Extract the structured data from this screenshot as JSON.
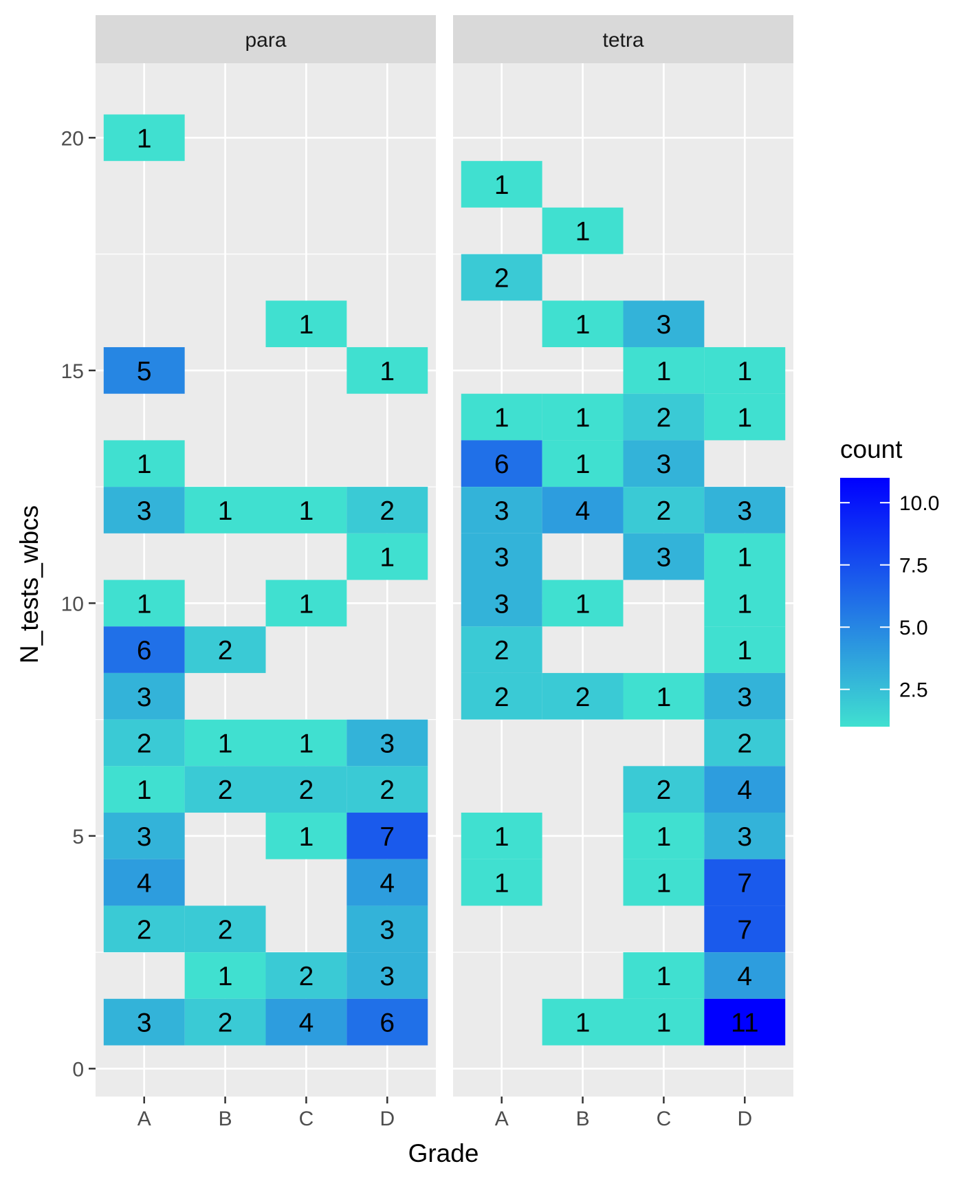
{
  "chart_data": {
    "type": "heatmap",
    "xlabel": "Grade",
    "ylabel": "N_tests_wbcs",
    "categories": [
      "A",
      "B",
      "C",
      "D"
    ],
    "ylim": [
      -0.6,
      21.6
    ],
    "yticks": [
      0,
      5,
      10,
      15,
      20
    ],
    "legend": {
      "title": "count",
      "position": "right",
      "ticks": [
        "2.5",
        "5.0",
        "7.5",
        "10.0"
      ],
      "tick_values": [
        2.5,
        5.0,
        7.5,
        10.0
      ],
      "range": [
        1,
        11
      ],
      "color_low": "#40E0D0",
      "color_high": "#0000FF"
    },
    "panels": [
      {
        "name": "para",
        "cells": [
          {
            "x": "A",
            "y": 20,
            "count": 1
          },
          {
            "x": "C",
            "y": 16,
            "count": 1
          },
          {
            "x": "A",
            "y": 15,
            "count": 5
          },
          {
            "x": "D",
            "y": 15,
            "count": 1
          },
          {
            "x": "A",
            "y": 13,
            "count": 1
          },
          {
            "x": "A",
            "y": 12,
            "count": 3
          },
          {
            "x": "B",
            "y": 12,
            "count": 1
          },
          {
            "x": "C",
            "y": 12,
            "count": 1
          },
          {
            "x": "D",
            "y": 12,
            "count": 2
          },
          {
            "x": "D",
            "y": 11,
            "count": 1
          },
          {
            "x": "A",
            "y": 10,
            "count": 1
          },
          {
            "x": "C",
            "y": 10,
            "count": 1
          },
          {
            "x": "A",
            "y": 9,
            "count": 6
          },
          {
            "x": "B",
            "y": 9,
            "count": 2
          },
          {
            "x": "A",
            "y": 8,
            "count": 3
          },
          {
            "x": "A",
            "y": 7,
            "count": 2
          },
          {
            "x": "B",
            "y": 7,
            "count": 1
          },
          {
            "x": "C",
            "y": 7,
            "count": 1
          },
          {
            "x": "D",
            "y": 7,
            "count": 3
          },
          {
            "x": "A",
            "y": 6,
            "count": 1
          },
          {
            "x": "B",
            "y": 6,
            "count": 2
          },
          {
            "x": "C",
            "y": 6,
            "count": 2
          },
          {
            "x": "D",
            "y": 6,
            "count": 2
          },
          {
            "x": "A",
            "y": 5,
            "count": 3
          },
          {
            "x": "C",
            "y": 5,
            "count": 1
          },
          {
            "x": "D",
            "y": 5,
            "count": 7
          },
          {
            "x": "A",
            "y": 4,
            "count": 4
          },
          {
            "x": "D",
            "y": 4,
            "count": 4
          },
          {
            "x": "A",
            "y": 3,
            "count": 2
          },
          {
            "x": "B",
            "y": 3,
            "count": 2
          },
          {
            "x": "D",
            "y": 3,
            "count": 3
          },
          {
            "x": "B",
            "y": 2,
            "count": 1
          },
          {
            "x": "C",
            "y": 2,
            "count": 2
          },
          {
            "x": "D",
            "y": 2,
            "count": 3
          },
          {
            "x": "A",
            "y": 1,
            "count": 3
          },
          {
            "x": "B",
            "y": 1,
            "count": 2
          },
          {
            "x": "C",
            "y": 1,
            "count": 4
          },
          {
            "x": "D",
            "y": 1,
            "count": 6
          }
        ]
      },
      {
        "name": "tetra",
        "cells": [
          {
            "x": "A",
            "y": 19,
            "count": 1
          },
          {
            "x": "B",
            "y": 18,
            "count": 1
          },
          {
            "x": "A",
            "y": 17,
            "count": 2
          },
          {
            "x": "B",
            "y": 16,
            "count": 1
          },
          {
            "x": "C",
            "y": 16,
            "count": 3
          },
          {
            "x": "C",
            "y": 15,
            "count": 1
          },
          {
            "x": "D",
            "y": 15,
            "count": 1
          },
          {
            "x": "A",
            "y": 14,
            "count": 1
          },
          {
            "x": "B",
            "y": 14,
            "count": 1
          },
          {
            "x": "C",
            "y": 14,
            "count": 2
          },
          {
            "x": "D",
            "y": 14,
            "count": 1
          },
          {
            "x": "A",
            "y": 13,
            "count": 6
          },
          {
            "x": "B",
            "y": 13,
            "count": 1
          },
          {
            "x": "C",
            "y": 13,
            "count": 3
          },
          {
            "x": "A",
            "y": 12,
            "count": 3
          },
          {
            "x": "B",
            "y": 12,
            "count": 4
          },
          {
            "x": "C",
            "y": 12,
            "count": 2
          },
          {
            "x": "D",
            "y": 12,
            "count": 3
          },
          {
            "x": "A",
            "y": 11,
            "count": 3
          },
          {
            "x": "C",
            "y": 11,
            "count": 3
          },
          {
            "x": "D",
            "y": 11,
            "count": 1
          },
          {
            "x": "A",
            "y": 10,
            "count": 3
          },
          {
            "x": "B",
            "y": 10,
            "count": 1
          },
          {
            "x": "D",
            "y": 10,
            "count": 1
          },
          {
            "x": "A",
            "y": 9,
            "count": 2
          },
          {
            "x": "D",
            "y": 9,
            "count": 1
          },
          {
            "x": "A",
            "y": 8,
            "count": 2
          },
          {
            "x": "B",
            "y": 8,
            "count": 2
          },
          {
            "x": "C",
            "y": 8,
            "count": 1
          },
          {
            "x": "D",
            "y": 8,
            "count": 3
          },
          {
            "x": "D",
            "y": 7,
            "count": 2
          },
          {
            "x": "C",
            "y": 6,
            "count": 2
          },
          {
            "x": "D",
            "y": 6,
            "count": 4
          },
          {
            "x": "A",
            "y": 5,
            "count": 1
          },
          {
            "x": "C",
            "y": 5,
            "count": 1
          },
          {
            "x": "D",
            "y": 5,
            "count": 3
          },
          {
            "x": "A",
            "y": 4,
            "count": 1
          },
          {
            "x": "C",
            "y": 4,
            "count": 1
          },
          {
            "x": "D",
            "y": 4,
            "count": 7
          },
          {
            "x": "D",
            "y": 3,
            "count": 7
          },
          {
            "x": "C",
            "y": 2,
            "count": 1
          },
          {
            "x": "D",
            "y": 2,
            "count": 4
          },
          {
            "x": "B",
            "y": 1,
            "count": 1
          },
          {
            "x": "C",
            "y": 1,
            "count": 1
          },
          {
            "x": "D",
            "y": 1,
            "count": 11
          }
        ]
      }
    ]
  }
}
